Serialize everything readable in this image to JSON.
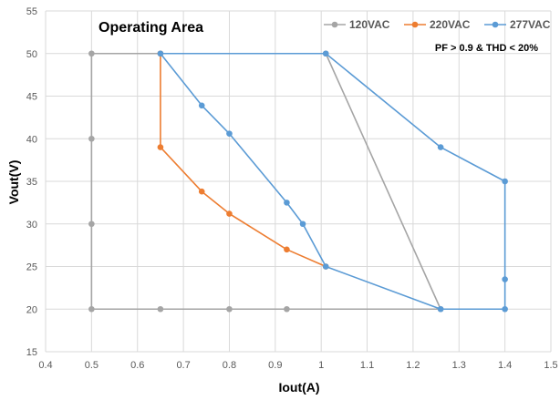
{
  "chart_data": {
    "type": "scatter",
    "title": "Operating Area",
    "annotation": "PF > 0.9 & THD < 20%",
    "xlabel": "Iout(A)",
    "ylabel": "Vout(V)",
    "xlim": [
      0.4,
      1.5
    ],
    "ylim": [
      15,
      55
    ],
    "xticks": [
      "0.4",
      "0.5",
      "0.6",
      "0.7",
      "0.8",
      "0.9",
      "1",
      "1.1",
      "1.2",
      "1.3",
      "1.4",
      "1.5"
    ],
    "yticks": [
      "15",
      "20",
      "25",
      "30",
      "35",
      "40",
      "45",
      "50",
      "55"
    ],
    "grid": true,
    "legend_position": "top-right",
    "series": [
      {
        "name": "120VAC",
        "color": "#a5a5a5",
        "points": [
          [
            0.5,
            20
          ],
          [
            0.5,
            30
          ],
          [
            0.5,
            40
          ],
          [
            0.5,
            50
          ],
          [
            0.65,
            50
          ],
          [
            1.01,
            50
          ],
          [
            1.26,
            20
          ],
          [
            0.925,
            20
          ],
          [
            0.8,
            20
          ],
          [
            0.65,
            20
          ],
          [
            0.5,
            20
          ]
        ]
      },
      {
        "name": "220VAC",
        "color": "#ed7d31",
        "points": [
          [
            0.65,
            50
          ],
          [
            0.65,
            39
          ],
          [
            0.74,
            33.8
          ],
          [
            0.8,
            31.2
          ],
          [
            0.925,
            27
          ],
          [
            1.01,
            25
          ]
        ]
      },
      {
        "name": "277VAC",
        "color": "#5b9bd5",
        "points": [
          [
            0.65,
            50
          ],
          [
            0.74,
            43.9
          ],
          [
            0.8,
            40.6
          ],
          [
            0.925,
            32.5
          ],
          [
            0.96,
            30
          ],
          [
            1.01,
            25
          ],
          [
            1.26,
            20
          ],
          [
            1.4,
            20
          ],
          [
            1.4,
            23.5
          ],
          [
            1.4,
            35
          ],
          [
            1.26,
            39
          ],
          [
            1.01,
            50
          ],
          [
            0.65,
            50
          ]
        ]
      }
    ]
  }
}
